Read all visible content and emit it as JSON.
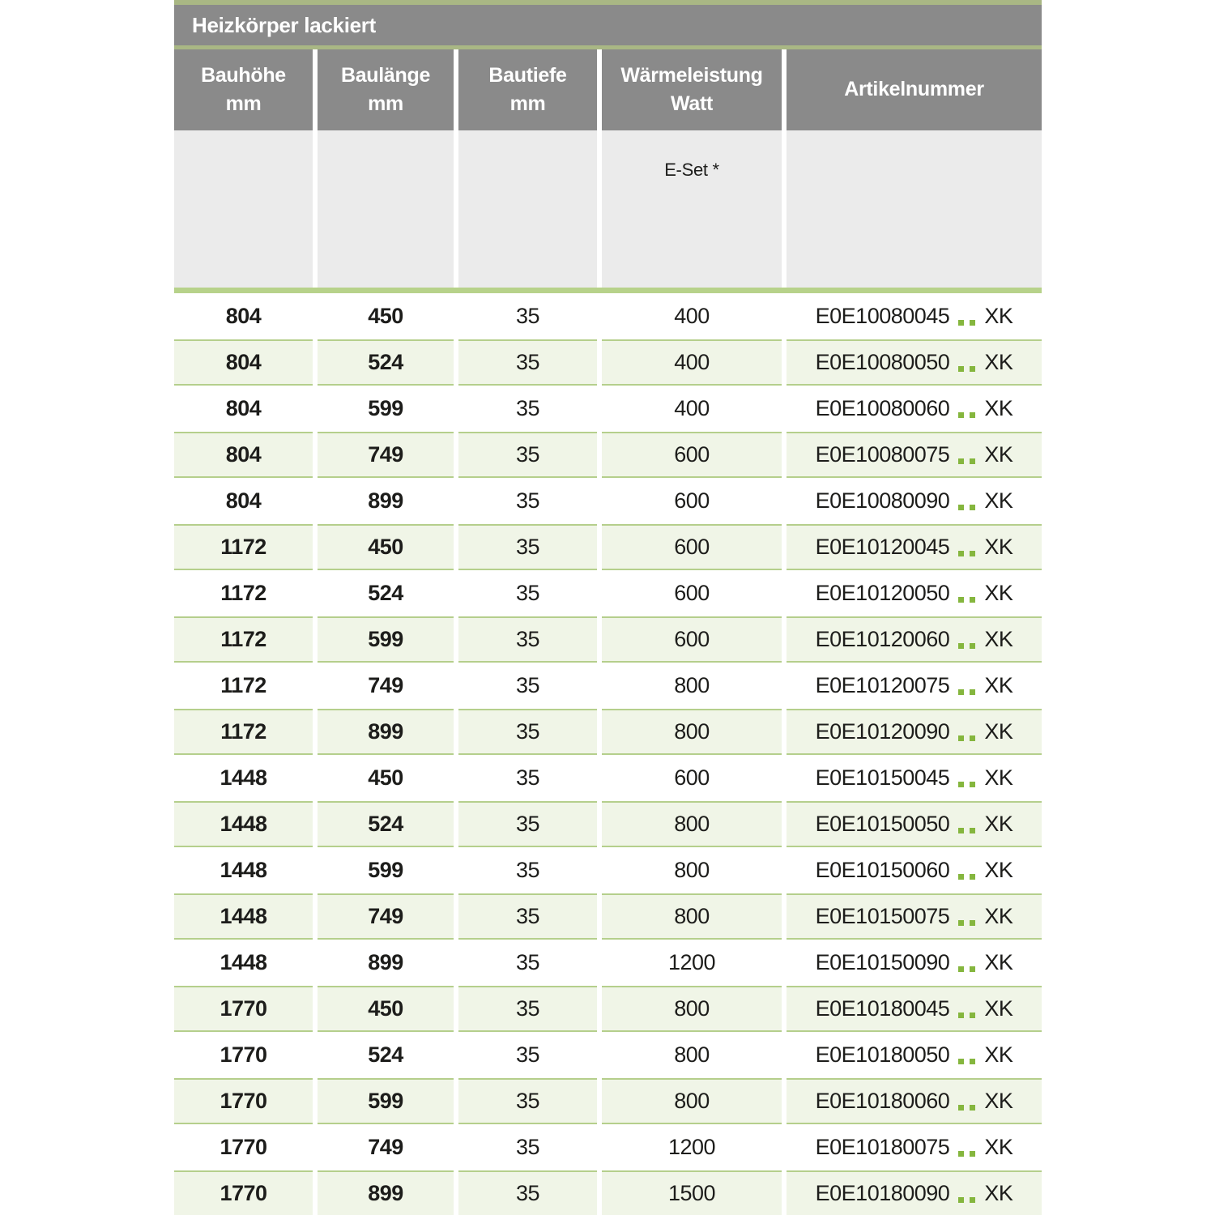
{
  "title": "Heizkörper lackiert",
  "columns": [
    {
      "label": "Bauhöhe",
      "unit": "mm"
    },
    {
      "label": "Baulänge",
      "unit": "mm"
    },
    {
      "label": "Bautiefe",
      "unit": "mm"
    },
    {
      "label": "Wärmeleistung",
      "unit": "Watt"
    },
    {
      "label": "Artikelnummer",
      "unit": ""
    }
  ],
  "subheader": {
    "eset_label": "E-Set *"
  },
  "colors": {
    "header_gray": "#8a8a8a",
    "subheader_gray": "#ebebeb",
    "divider_olive": "#a9b784",
    "accent_green": "#b7d28a",
    "row_green_bg": "#f0f5e7",
    "row_green_border": "#b5cf8c",
    "dot_green": "#85b63e",
    "text_dark": "#1d1d1b",
    "text_white": "#ffffff"
  },
  "rows": [
    {
      "bauhoehe": "804",
      "baulaenge": "450",
      "bautiefe": "35",
      "watt": "400",
      "artikelnummer": "E0E10080045..XK"
    },
    {
      "bauhoehe": "804",
      "baulaenge": "524",
      "bautiefe": "35",
      "watt": "400",
      "artikelnummer": "E0E10080050..XK"
    },
    {
      "bauhoehe": "804",
      "baulaenge": "599",
      "bautiefe": "35",
      "watt": "400",
      "artikelnummer": "E0E10080060..XK"
    },
    {
      "bauhoehe": "804",
      "baulaenge": "749",
      "bautiefe": "35",
      "watt": "600",
      "artikelnummer": "E0E10080075..XK"
    },
    {
      "bauhoehe": "804",
      "baulaenge": "899",
      "bautiefe": "35",
      "watt": "600",
      "artikelnummer": "E0E10080090..XK"
    },
    {
      "bauhoehe": "1172",
      "baulaenge": "450",
      "bautiefe": "35",
      "watt": "600",
      "artikelnummer": "E0E10120045..XK"
    },
    {
      "bauhoehe": "1172",
      "baulaenge": "524",
      "bautiefe": "35",
      "watt": "600",
      "artikelnummer": "E0E10120050..XK"
    },
    {
      "bauhoehe": "1172",
      "baulaenge": "599",
      "bautiefe": "35",
      "watt": "600",
      "artikelnummer": "E0E10120060..XK"
    },
    {
      "bauhoehe": "1172",
      "baulaenge": "749",
      "bautiefe": "35",
      "watt": "800",
      "artikelnummer": "E0E10120075..XK"
    },
    {
      "bauhoehe": "1172",
      "baulaenge": "899",
      "bautiefe": "35",
      "watt": "800",
      "artikelnummer": "E0E10120090..XK"
    },
    {
      "bauhoehe": "1448",
      "baulaenge": "450",
      "bautiefe": "35",
      "watt": "600",
      "artikelnummer": "E0E10150045..XK"
    },
    {
      "bauhoehe": "1448",
      "baulaenge": "524",
      "bautiefe": "35",
      "watt": "800",
      "artikelnummer": "E0E10150050..XK"
    },
    {
      "bauhoehe": "1448",
      "baulaenge": "599",
      "bautiefe": "35",
      "watt": "800",
      "artikelnummer": "E0E10150060..XK"
    },
    {
      "bauhoehe": "1448",
      "baulaenge": "749",
      "bautiefe": "35",
      "watt": "800",
      "artikelnummer": "E0E10150075..XK"
    },
    {
      "bauhoehe": "1448",
      "baulaenge": "899",
      "bautiefe": "35",
      "watt": "1200",
      "artikelnummer": "E0E10150090..XK"
    },
    {
      "bauhoehe": "1770",
      "baulaenge": "450",
      "bautiefe": "35",
      "watt": "800",
      "artikelnummer": "E0E10180045..XK"
    },
    {
      "bauhoehe": "1770",
      "baulaenge": "524",
      "bautiefe": "35",
      "watt": "800",
      "artikelnummer": "E0E10180050..XK"
    },
    {
      "bauhoehe": "1770",
      "baulaenge": "599",
      "bautiefe": "35",
      "watt": "800",
      "artikelnummer": "E0E10180060..XK"
    },
    {
      "bauhoehe": "1770",
      "baulaenge": "749",
      "bautiefe": "35",
      "watt": "1200",
      "artikelnummer": "E0E10180075..XK"
    },
    {
      "bauhoehe": "1770",
      "baulaenge": "899",
      "bautiefe": "35",
      "watt": "1500",
      "artikelnummer": "E0E10180090..XK"
    }
  ]
}
